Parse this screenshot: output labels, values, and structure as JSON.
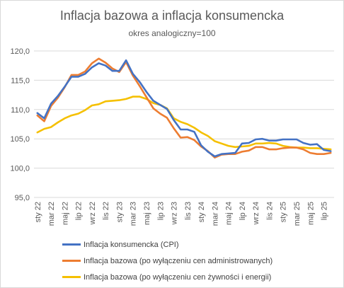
{
  "chart_data": {
    "type": "line",
    "title": "Inflacja bazowa a inflacja konsumencka",
    "subtitle": "okres analogiczny=100",
    "xlabel": "",
    "ylabel": "",
    "ylim": [
      95,
      120
    ],
    "yticks": [
      "95,0",
      "100,0",
      "105,0",
      "110,0",
      "115,0",
      "120,0"
    ],
    "ytick_values": [
      95,
      100,
      105,
      110,
      115,
      120
    ],
    "grid": true,
    "legend_position": "bottom",
    "x": [
      "sty 22",
      "lut 22",
      "mar 22",
      "kwi 22",
      "maj 22",
      "cze 22",
      "lip 22",
      "sie 22",
      "wrz 22",
      "paź 22",
      "lis 22",
      "gru 22",
      "sty 23",
      "lut 23",
      "mar 23",
      "kwi 23",
      "maj 23",
      "cze 23",
      "lip 23",
      "sie 23",
      "wrz 23",
      "paź 23",
      "lis 23",
      "gru 23",
      "sty 24",
      "lut 24",
      "mar 24",
      "kwi 24",
      "maj 24",
      "cze 24",
      "lip 24",
      "sie 24",
      "wrz 24",
      "paź 24",
      "lis 24",
      "gru 24",
      "sty 25",
      "lut 25",
      "mar 25",
      "kwi 25",
      "maj 25",
      "cze 25",
      "lip 25",
      "sie 25"
    ],
    "xtick_labels": [
      "sty 22",
      "",
      "mar 22",
      "",
      "maj 22",
      "",
      "lip 22",
      "",
      "wrz 22",
      "",
      "lis 22",
      "",
      "sty 23",
      "",
      "mar 23",
      "",
      "maj 23",
      "",
      "lip 23",
      "",
      "wrz 23",
      "",
      "lis 23",
      "",
      "sty 24",
      "",
      "mar 24",
      "",
      "maj 24",
      "",
      "lip 24",
      "",
      "wrz 24",
      "",
      "lis 24",
      "",
      "sty 25",
      "",
      "mar 25",
      "",
      "maj 25",
      "",
      "lip 25",
      ""
    ],
    "series": [
      {
        "name": "Inflacja konsumencka (CPI)",
        "color": "#4472c4",
        "values": [
          109.4,
          108.5,
          111.0,
          112.3,
          113.9,
          115.6,
          115.6,
          116.1,
          117.2,
          117.9,
          117.5,
          116.6,
          116.6,
          118.4,
          116.1,
          114.7,
          113.0,
          111.5,
          110.8,
          110.1,
          108.2,
          106.6,
          106.6,
          106.2,
          103.9,
          102.8,
          102.0,
          102.4,
          102.5,
          102.6,
          104.2,
          104.3,
          104.9,
          105.0,
          104.7,
          104.7,
          104.9,
          104.9,
          104.9,
          104.3,
          104.0,
          104.1,
          103.1,
          102.9
        ]
      },
      {
        "name": "Inflacja bazowa (po wyłączeniu cen administrowanych)",
        "color": "#ed7d31",
        "values": [
          109.0,
          108.0,
          110.6,
          112.0,
          113.8,
          115.9,
          115.9,
          116.5,
          117.9,
          118.7,
          118.0,
          117.0,
          116.4,
          118.1,
          115.8,
          114.0,
          112.1,
          110.2,
          109.3,
          108.6,
          106.8,
          105.2,
          105.3,
          104.8,
          103.7,
          102.9,
          101.8,
          102.3,
          102.4,
          102.4,
          102.8,
          103.0,
          103.6,
          103.6,
          103.2,
          103.2,
          103.4,
          103.5,
          103.5,
          103.2,
          102.6,
          102.4,
          102.4,
          102.6
        ]
      },
      {
        "name": "Inflacja bazowa (po wyłączeniu cen żywności i energii)",
        "color": "#f5c000",
        "values": [
          106.1,
          106.7,
          107.0,
          107.8,
          108.5,
          109.0,
          109.3,
          109.9,
          110.7,
          110.9,
          111.4,
          111.5,
          111.6,
          111.8,
          112.2,
          112.2,
          111.8,
          111.1,
          110.8,
          110.2,
          108.5,
          107.9,
          107.5,
          106.9,
          106.1,
          105.5,
          104.6,
          104.2,
          103.8,
          103.6,
          103.7,
          103.8,
          104.2,
          104.2,
          104.3,
          104.2,
          103.8,
          103.6,
          103.5,
          103.5,
          103.4,
          103.4,
          103.3,
          103.2
        ]
      }
    ]
  }
}
